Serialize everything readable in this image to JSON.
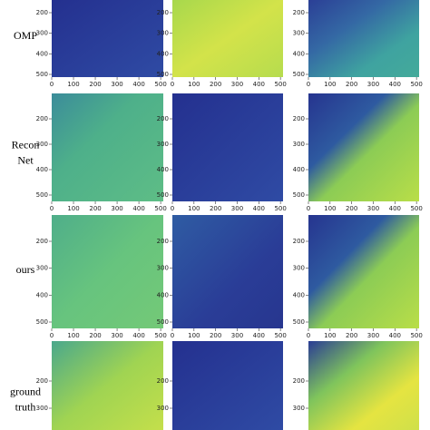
{
  "rows": [
    {
      "label": [
        "OMP"
      ],
      "yticks": [
        200,
        300,
        400,
        500
      ],
      "xticks": [
        0,
        100,
        200,
        300,
        400,
        500
      ]
    },
    {
      "label": [
        "Recon",
        "Net"
      ],
      "yticks": [
        200,
        300,
        400,
        500
      ],
      "xticks": [
        0,
        100,
        200,
        300,
        400,
        500
      ]
    },
    {
      "label": [
        "ours"
      ],
      "yticks": [
        200,
        300,
        400,
        500
      ],
      "xticks": [
        0,
        100,
        200,
        300,
        400,
        500
      ]
    },
    {
      "label": [
        "ground",
        "truth"
      ],
      "yticks": [
        200,
        300
      ],
      "xticks": []
    }
  ]
}
